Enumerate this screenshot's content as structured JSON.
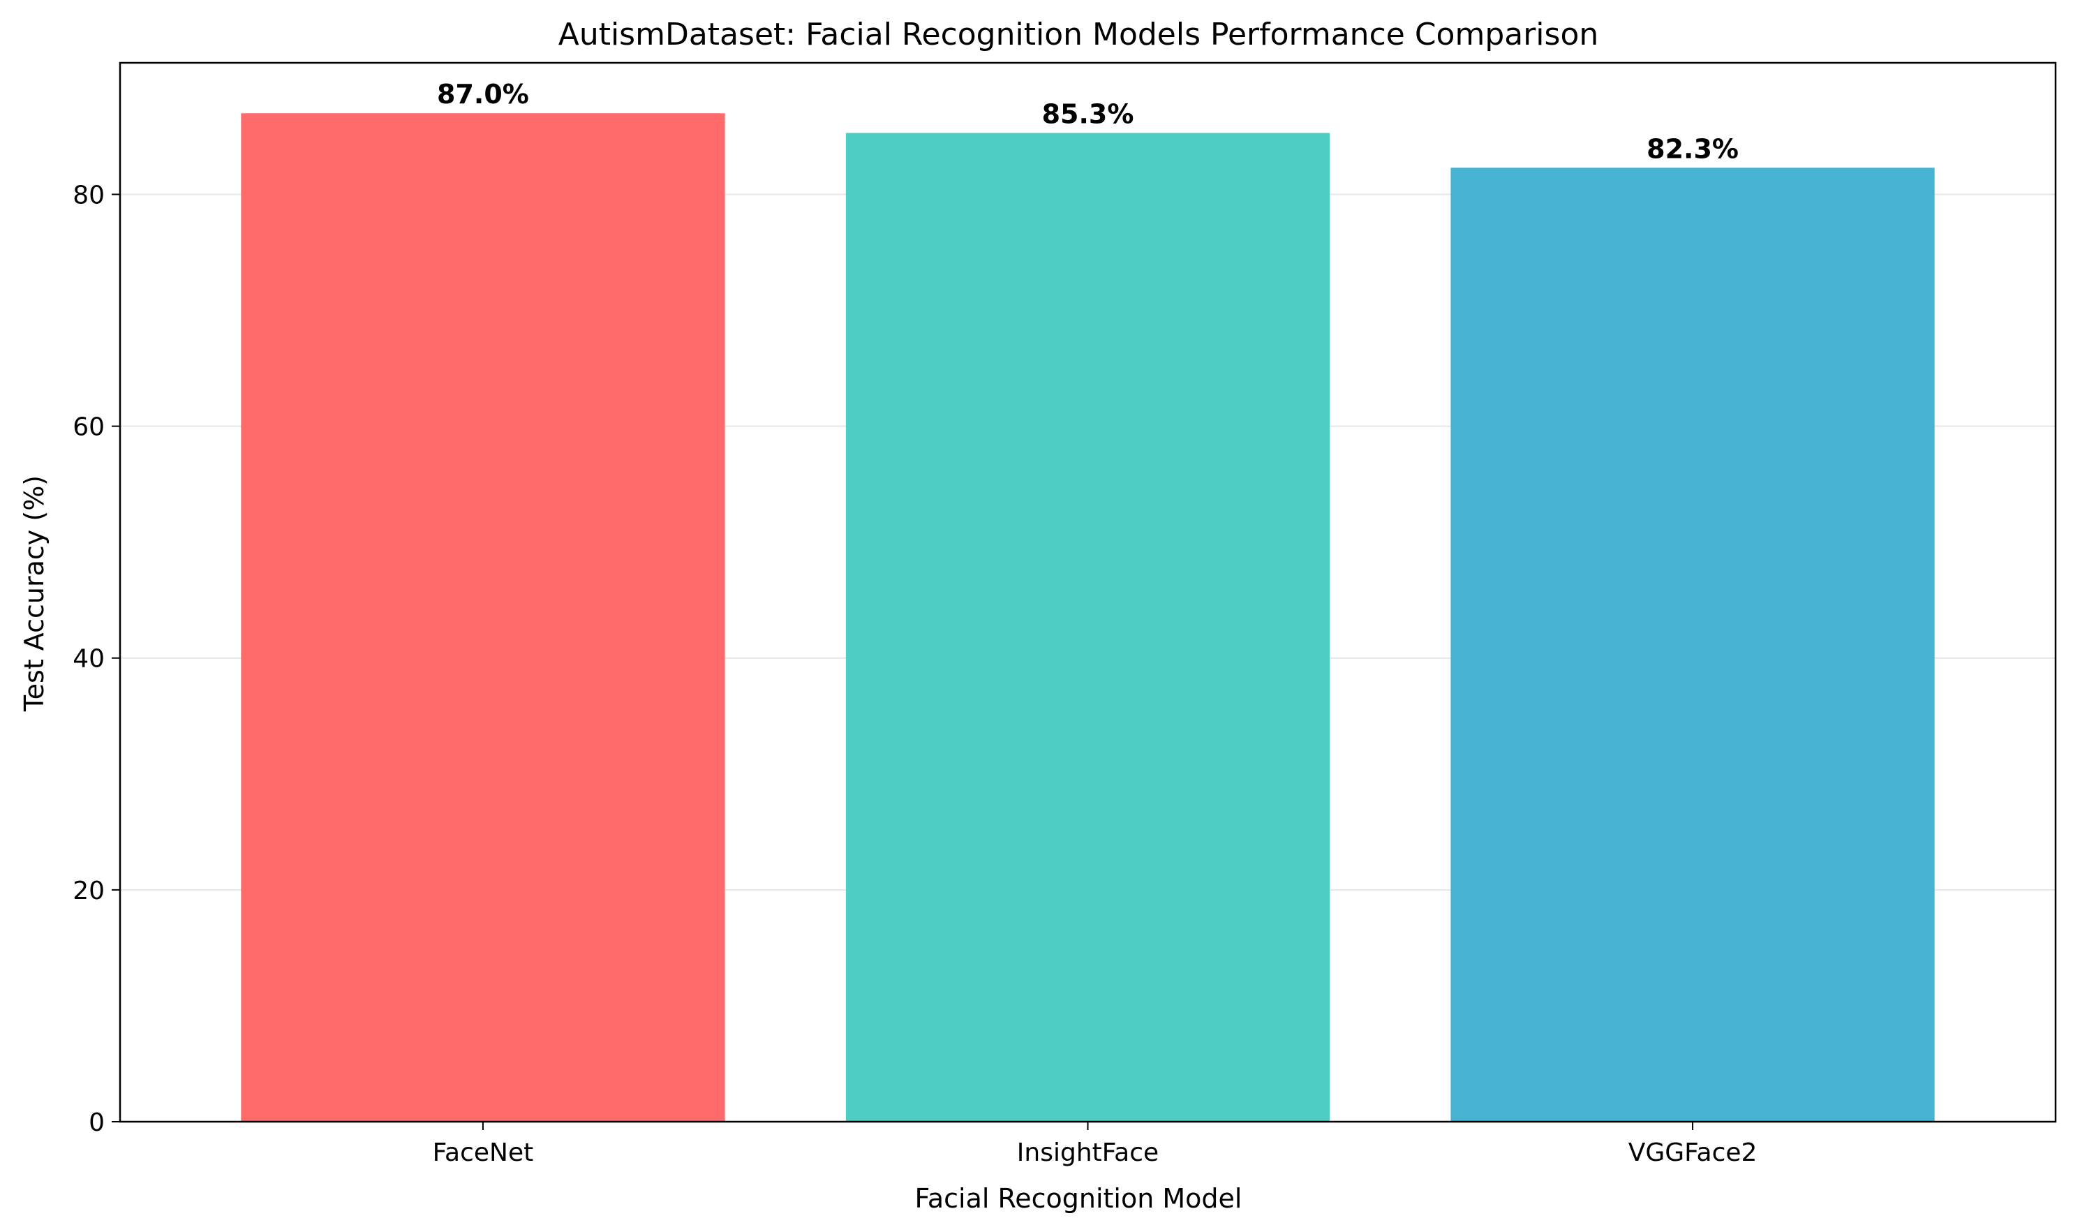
{
  "chart_data": {
    "type": "bar",
    "title": "AutismDataset: Facial Recognition Models Performance Comparison",
    "xlabel": "Facial Recognition Model",
    "ylabel": "Test Accuracy (%)",
    "categories": [
      "FaceNet",
      "InsightFace",
      "VGGFace2"
    ],
    "values": [
      87.0,
      85.3,
      82.3
    ],
    "value_labels": [
      "87.0%",
      "85.3%",
      "82.3%"
    ],
    "colors": [
      "#ff6b6b",
      "#4ecdc4",
      "#45b3d1"
    ],
    "ylim": [
      0,
      91.35
    ],
    "yticks": [
      0,
      20,
      40,
      60,
      80
    ],
    "grid": "horizontal",
    "grid_color": "#e6e6e6"
  }
}
